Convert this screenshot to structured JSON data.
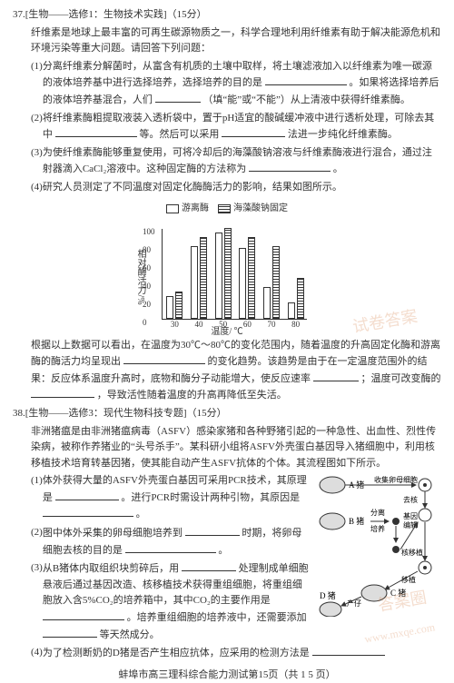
{
  "q37": {
    "num": "37.",
    "tag": "[生物——选修1：生物技术实践]（15分）",
    "intro": "纤维素是地球上最丰富的可再生碳源物质之一，科学合理地利用纤维素有助于解决能源危机和环境污染等重大问题。请回答下列问题：",
    "p1a": "(1)",
    "p1t1": "分离纤维素分解菌时，从富含有机质的土壤中取样，将土壤滤液加入以纤维素为唯一碳源的液体培养基中进行选择培养，选择培养的目的是",
    "p1t2": "。如果将选择培养后的液体培养基混合，人们",
    "p1t3": "（填“能”或“不能”）从上清液中获得纤维素酶。",
    "p2a": "(2)",
    "p2t1": "将纤维素酶粗提取液装入透析袋中，置于pH适宜的酸碱缓冲液中进行透析处理，可除去其中",
    "p2t2": "等。然后可以采用",
    "p2t3": "法进一步纯化纤维素酶。",
    "p3a": "(3)",
    "p3t1": "为使纤维素酶能够重复使用，可将冷却后的海藻酸钠溶液与纤维素酶液进行混合，通过注射器滴入CaCl₂溶液中。这种固定酶的方法称为",
    "p3t2": "。",
    "p4a": "(4)",
    "p4t": "研究人员测定了不同温度对固定化酶酶活力的影响，结果如图所示。",
    "after1": "根据以上数据可以看出，在温度为30℃～80℃的变化范围内，随着温度的升高固定化酶和游离酶的酶活力均呈现出",
    "after2": "的变化趋势。该趋势是由于在一定温度范围外的结果：反应体系温度升高时，底物和酶分子动能增大，使反应速率",
    "after3": "；温度可改变酶的",
    "after4": "，导致活性随着温度的升高再降低至失活。"
  },
  "chart": {
    "type": "bar",
    "legend_open": "游离酶",
    "legend_fill": "海藻酸钠固定",
    "ylabel": "相对酶活力/%",
    "xlabel": "温度/ ℃",
    "ylim": [
      0,
      100
    ],
    "yticks": [
      0,
      20,
      40,
      60,
      80,
      100
    ],
    "categories": [
      "30",
      "40",
      "50",
      "60",
      "70",
      "80"
    ],
    "free": [
      25,
      80,
      95,
      78,
      35,
      18
    ],
    "fixed": [
      30,
      90,
      100,
      90,
      80,
      45
    ],
    "bar_colors": {
      "open": "#ffffff",
      "fill_pattern": "#333333"
    },
    "axis_color": "#333333",
    "bg": "#ffffff"
  },
  "q38": {
    "num": "38.",
    "tag": "[生物——选修3：现代生物科技专题]（15分）",
    "intro": "非洲猪瘟是由非洲猪瘟病毒（ASFV）感染家猪和各种野猪引起的一种急性、出血性、烈性传染病，被称作养猪业的“头号杀手”。某科研小组将ASFV外壳蛋白基因导入猪细胞中，利用核移植技术培育转基因猪，使其能自动产生ASFV抗体的个体。其流程图如下所示。",
    "p1a": "(1)",
    "p1t1": "体外获得大量的ASFV外壳蛋白基因可采用PCR技术，其原理是",
    "p1t2": "。进行PCR时需设计两种引物，其原因是",
    "p1t3": "。",
    "p2a": "(2)",
    "p2t1": "图中体外采集的卵母细胞培养到",
    "p2t2": "时期，将卵母细胞去核的目的是",
    "p2t3": "。",
    "p3a": "(3)",
    "p3t1": "从B猪体内取组织块剪碎后，用",
    "p3t2": "处理制成单细胞悬液后通过基因改造、核移植技术获得重组细胞，将重组细胞放入含5%CO₂的培养箱中，其中CO₂的主要作用是",
    "p3t3": "。培养重组细胞的培养液中，还需要添加",
    "p3t4": "等天然成分。",
    "p4a": "(4)",
    "p4t": "为了检测断奶的D猪是否产生相应抗体，应采用的检测方法是"
  },
  "diagram": {
    "A": "A 猪",
    "A_act": "收集卵母细胞",
    "denucleate": "去核",
    "B": "B 猪",
    "split": "分离培养",
    "gene": "基因编辑",
    "nucmove": "核移植",
    "C": "C 猪",
    "transplant": "移植",
    "birth": "产仔",
    "D": "D 猪"
  },
  "footer": "蚌埠市高三理科综合能力测试第15页（共 1 5 页）",
  "blanks": {
    "w50": 50,
    "w70": 70,
    "w90": 90,
    "w120": 120
  }
}
